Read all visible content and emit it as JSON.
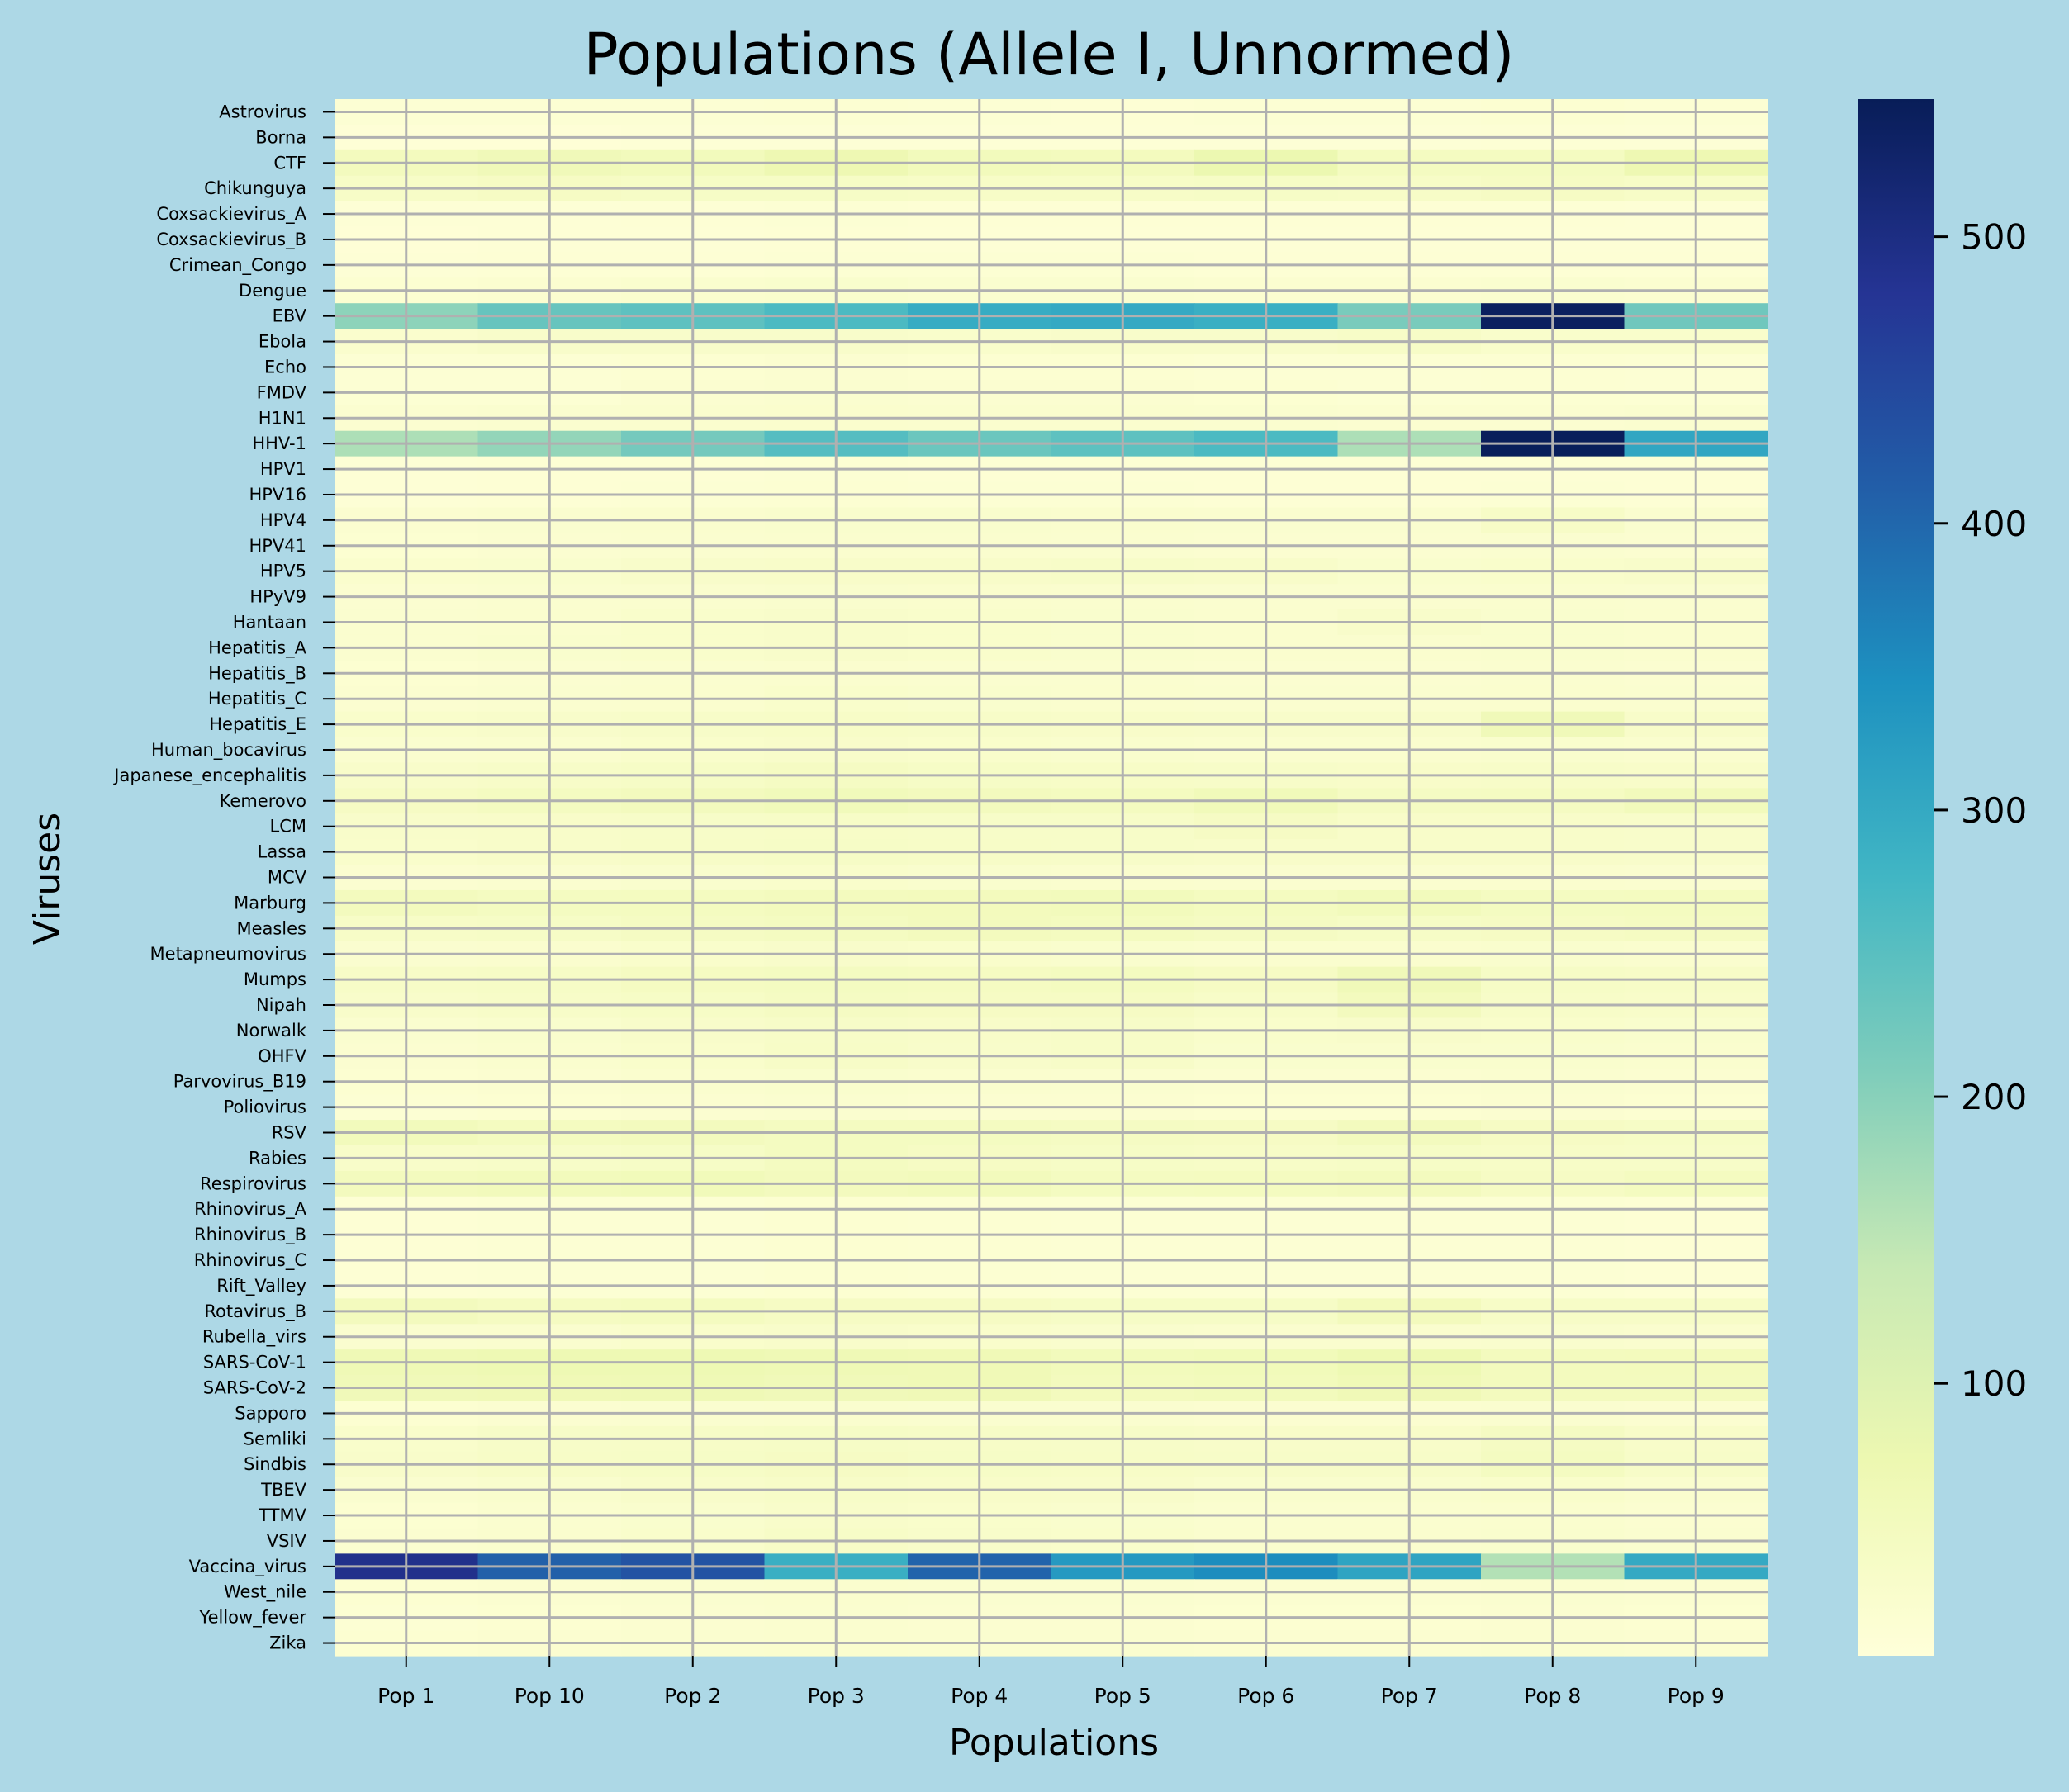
{
  "chart_data": {
    "type": "heatmap",
    "title": "Populations (Allele I, Unnormed)",
    "xlabel": "Populations",
    "ylabel": "Viruses",
    "colormap": "YlGnBu",
    "vmin": 5,
    "vmax": 548,
    "colorbar_ticks": [
      100,
      200,
      300,
      400,
      500
    ],
    "grid": true,
    "grid_color": "#b0b0b0",
    "background": "#add8e6",
    "x": [
      "Pop 1",
      "Pop 10",
      "Pop 2",
      "Pop 3",
      "Pop 4",
      "Pop 5",
      "Pop 6",
      "Pop 7",
      "Pop 8",
      "Pop 9"
    ],
    "y": [
      "Astrovirus",
      "Borna",
      "CTF",
      "Chikunguya",
      "Coxsackievirus_A",
      "Coxsackievirus_B",
      "Crimean_Congo",
      "Dengue",
      "EBV",
      "Ebola",
      "Echo",
      "FMDV",
      "H1N1",
      "HHV-1",
      "HPV1",
      "HPV16",
      "HPV4",
      "HPV41",
      "HPV5",
      "HPyV9",
      "Hantaan",
      "Hepatitis_A",
      "Hepatitis_B",
      "Hepatitis_C",
      "Hepatitis_E",
      "Human_bocavirus",
      "Japanese_encephalitis",
      "Kemerovo",
      "LCM",
      "Lassa",
      "MCV",
      "Marburg",
      "Measles",
      "Metapneumovirus",
      "Mumps",
      "Nipah",
      "Norwalk",
      "OHFV",
      "Parvovirus_B19",
      "Poliovirus",
      "RSV",
      "Rabies",
      "Respirovirus",
      "Rhinovirus_A",
      "Rhinovirus_B",
      "Rhinovirus_C",
      "Rift_Valley",
      "Rotavirus_B",
      "Rubella_virs",
      "SARS-CoV-1",
      "SARS-CoV-2",
      "Sapporo",
      "Semliki",
      "Sindbis",
      "TBEV",
      "TTMV",
      "VSIV",
      "Vaccina_virus",
      "West_nile",
      "Yellow_fever",
      "Zika"
    ],
    "values": [
      [
        15,
        15,
        16,
        17,
        15,
        14,
        16,
        16,
        18,
        15
      ],
      [
        10,
        10,
        11,
        12,
        12,
        11,
        11,
        12,
        13,
        12
      ],
      [
        50,
        60,
        55,
        70,
        55,
        50,
        75,
        45,
        45,
        70
      ],
      [
        35,
        40,
        38,
        38,
        36,
        35,
        38,
        35,
        40,
        36
      ],
      [
        12,
        12,
        14,
        15,
        13,
        13,
        13,
        13,
        14,
        12
      ],
      [
        10,
        11,
        12,
        13,
        12,
        12,
        11,
        12,
        12,
        11
      ],
      [
        12,
        13,
        14,
        16,
        15,
        16,
        14,
        14,
        14,
        13
      ],
      [
        18,
        20,
        24,
        26,
        22,
        22,
        20,
        20,
        22,
        20
      ],
      [
        195,
        235,
        245,
        265,
        295,
        300,
        290,
        215,
        540,
        225
      ],
      [
        25,
        30,
        30,
        30,
        28,
        30,
        30,
        35,
        28,
        28
      ],
      [
        15,
        16,
        18,
        20,
        18,
        18,
        16,
        16,
        17,
        15
      ],
      [
        15,
        16,
        20,
        22,
        20,
        20,
        18,
        16,
        17,
        16
      ],
      [
        20,
        22,
        23,
        25,
        24,
        23,
        22,
        20,
        20,
        22
      ],
      [
        165,
        190,
        220,
        255,
        230,
        245,
        265,
        165,
        545,
        305
      ],
      [
        12,
        13,
        14,
        15,
        14,
        14,
        13,
        13,
        14,
        13
      ],
      [
        12,
        14,
        16,
        17,
        16,
        15,
        14,
        14,
        15,
        14
      ],
      [
        20,
        22,
        24,
        26,
        26,
        24,
        22,
        22,
        35,
        22
      ],
      [
        18,
        20,
        22,
        24,
        23,
        22,
        20,
        20,
        22,
        20
      ],
      [
        25,
        26,
        30,
        32,
        32,
        34,
        32,
        26,
        28,
        30
      ],
      [
        20,
        22,
        24,
        26,
        25,
        24,
        22,
        22,
        24,
        22
      ],
      [
        22,
        24,
        28,
        30,
        28,
        26,
        24,
        30,
        26,
        24
      ],
      [
        22,
        26,
        28,
        30,
        28,
        26,
        24,
        24,
        26,
        24
      ],
      [
        18,
        20,
        22,
        24,
        22,
        22,
        20,
        20,
        22,
        20
      ],
      [
        20,
        22,
        24,
        28,
        26,
        24,
        22,
        22,
        24,
        22
      ],
      [
        28,
        30,
        34,
        36,
        34,
        32,
        30,
        30,
        60,
        32
      ],
      [
        22,
        24,
        28,
        30,
        28,
        26,
        24,
        24,
        26,
        24
      ],
      [
        30,
        34,
        38,
        42,
        38,
        36,
        34,
        32,
        34,
        32
      ],
      [
        40,
        45,
        50,
        56,
        50,
        48,
        58,
        42,
        44,
        55
      ],
      [
        30,
        32,
        34,
        36,
        34,
        34,
        40,
        32,
        32,
        30
      ],
      [
        28,
        32,
        36,
        38,
        36,
        34,
        32,
        32,
        32,
        30
      ],
      [
        20,
        22,
        26,
        28,
        26,
        24,
        22,
        22,
        24,
        22
      ],
      [
        50,
        46,
        48,
        50,
        52,
        55,
        48,
        55,
        46,
        48
      ],
      [
        35,
        38,
        42,
        46,
        50,
        48,
        42,
        38,
        40,
        44
      ],
      [
        22,
        24,
        28,
        30,
        28,
        26,
        24,
        24,
        26,
        24
      ],
      [
        35,
        38,
        44,
        46,
        44,
        48,
        40,
        60,
        38,
        36
      ],
      [
        30,
        34,
        38,
        42,
        40,
        40,
        34,
        50,
        34,
        32
      ],
      [
        22,
        26,
        30,
        34,
        32,
        34,
        28,
        30,
        28,
        26
      ],
      [
        20,
        24,
        28,
        36,
        30,
        34,
        26,
        26,
        26,
        24
      ],
      [
        18,
        20,
        24,
        26,
        24,
        22,
        20,
        20,
        22,
        20
      ],
      [
        16,
        18,
        20,
        22,
        20,
        20,
        18,
        18,
        20,
        18
      ],
      [
        55,
        48,
        50,
        45,
        45,
        42,
        40,
        50,
        40,
        38
      ],
      [
        32,
        34,
        38,
        45,
        40,
        38,
        36,
        38,
        36,
        34
      ],
      [
        50,
        55,
        58,
        50,
        55,
        45,
        48,
        50,
        40,
        48
      ],
      [
        14,
        15,
        16,
        18,
        17,
        16,
        15,
        15,
        16,
        14
      ],
      [
        14,
        15,
        16,
        18,
        17,
        16,
        15,
        15,
        16,
        14
      ],
      [
        14,
        15,
        16,
        18,
        17,
        16,
        15,
        15,
        16,
        14
      ],
      [
        14,
        15,
        16,
        18,
        17,
        16,
        15,
        15,
        16,
        14
      ],
      [
        50,
        44,
        48,
        40,
        40,
        38,
        38,
        52,
        36,
        36
      ],
      [
        22,
        24,
        28,
        30,
        28,
        26,
        24,
        24,
        26,
        24
      ],
      [
        65,
        68,
        68,
        65,
        62,
        55,
        58,
        68,
        50,
        52
      ],
      [
        60,
        62,
        64,
        60,
        62,
        50,
        55,
        62,
        50,
        50
      ],
      [
        18,
        20,
        22,
        24,
        22,
        22,
        20,
        20,
        22,
        20
      ],
      [
        28,
        34,
        36,
        38,
        36,
        34,
        32,
        32,
        42,
        32
      ],
      [
        30,
        36,
        38,
        40,
        38,
        36,
        34,
        34,
        46,
        34
      ],
      [
        22,
        26,
        30,
        34,
        32,
        30,
        26,
        26,
        28,
        24
      ],
      [
        18,
        22,
        26,
        30,
        28,
        26,
        22,
        22,
        24,
        20
      ],
      [
        20,
        24,
        28,
        36,
        30,
        28,
        24,
        24,
        26,
        22
      ],
      [
        490,
        410,
        430,
        290,
        405,
        330,
        350,
        310,
        160,
        300
      ],
      [
        18,
        20,
        22,
        24,
        22,
        22,
        20,
        20,
        22,
        20
      ],
      [
        16,
        18,
        20,
        22,
        20,
        20,
        18,
        18,
        20,
        18
      ],
      [
        18,
        20,
        22,
        24,
        22,
        22,
        20,
        20,
        22,
        20
      ]
    ]
  }
}
